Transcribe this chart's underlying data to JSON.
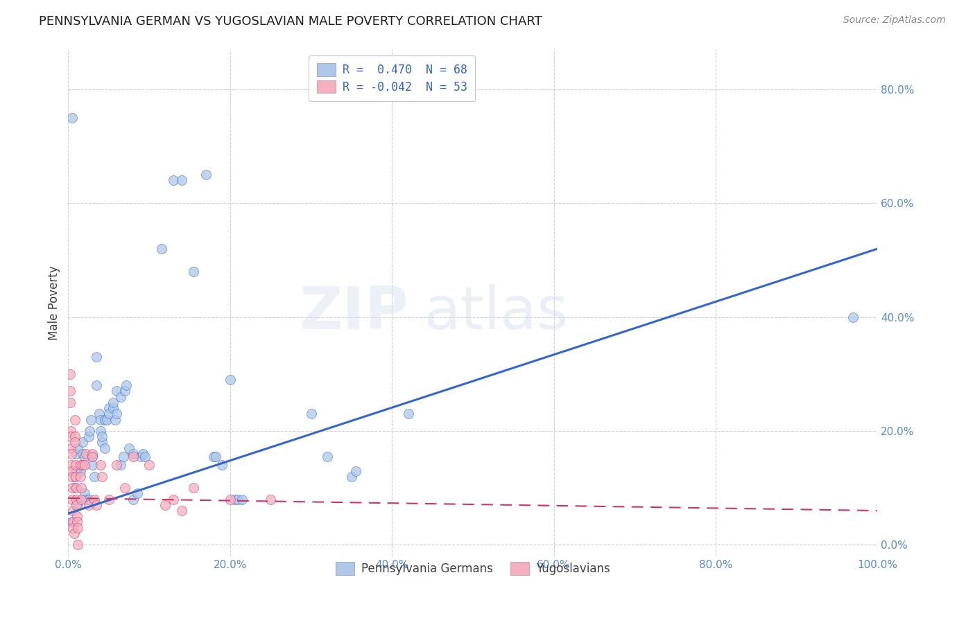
{
  "title": "PENNSYLVANIA GERMAN VS YUGOSLAVIAN MALE POVERTY CORRELATION CHART",
  "source": "Source: ZipAtlas.com",
  "ylabel": "Male Poverty",
  "r_blue": 0.47,
  "n_blue": 68,
  "r_pink": -0.042,
  "n_pink": 53,
  "watermark": "ZIPatlas",
  "legend_labels": [
    "Pennsylvania Germans",
    "Yugoslavians"
  ],
  "blue_color": "#adc8e8",
  "pink_color": "#f4afc0",
  "blue_line_color": "#3366cc",
  "pink_line_color": "#cc3366",
  "background_color": "#ffffff",
  "grid_color": "#ccccdd",
  "blue_scatter": [
    [
      0.005,
      0.75
    ],
    [
      0.005,
      0.04
    ],
    [
      0.008,
      0.1
    ],
    [
      0.008,
      0.12
    ],
    [
      0.01,
      0.13
    ],
    [
      0.01,
      0.16
    ],
    [
      0.012,
      0.17
    ],
    [
      0.012,
      0.07
    ],
    [
      0.015,
      0.13
    ],
    [
      0.018,
      0.16
    ],
    [
      0.018,
      0.18
    ],
    [
      0.02,
      0.155
    ],
    [
      0.02,
      0.09
    ],
    [
      0.022,
      0.08
    ],
    [
      0.025,
      0.08
    ],
    [
      0.025,
      0.19
    ],
    [
      0.026,
      0.2
    ],
    [
      0.028,
      0.22
    ],
    [
      0.03,
      0.155
    ],
    [
      0.03,
      0.14
    ],
    [
      0.032,
      0.12
    ],
    [
      0.035,
      0.33
    ],
    [
      0.035,
      0.28
    ],
    [
      0.038,
      0.23
    ],
    [
      0.04,
      0.22
    ],
    [
      0.04,
      0.2
    ],
    [
      0.042,
      0.18
    ],
    [
      0.042,
      0.19
    ],
    [
      0.045,
      0.17
    ],
    [
      0.045,
      0.22
    ],
    [
      0.048,
      0.22
    ],
    [
      0.05,
      0.24
    ],
    [
      0.05,
      0.23
    ],
    [
      0.055,
      0.24
    ],
    [
      0.055,
      0.25
    ],
    [
      0.058,
      0.22
    ],
    [
      0.06,
      0.23
    ],
    [
      0.06,
      0.27
    ],
    [
      0.065,
      0.26
    ],
    [
      0.065,
      0.14
    ],
    [
      0.068,
      0.155
    ],
    [
      0.07,
      0.27
    ],
    [
      0.072,
      0.28
    ],
    [
      0.075,
      0.17
    ],
    [
      0.08,
      0.16
    ],
    [
      0.08,
      0.08
    ],
    [
      0.085,
      0.09
    ],
    [
      0.09,
      0.155
    ],
    [
      0.092,
      0.16
    ],
    [
      0.095,
      0.155
    ],
    [
      0.115,
      0.52
    ],
    [
      0.13,
      0.64
    ],
    [
      0.14,
      0.64
    ],
    [
      0.155,
      0.48
    ],
    [
      0.17,
      0.65
    ],
    [
      0.18,
      0.155
    ],
    [
      0.182,
      0.155
    ],
    [
      0.19,
      0.14
    ],
    [
      0.2,
      0.29
    ],
    [
      0.205,
      0.08
    ],
    [
      0.21,
      0.08
    ],
    [
      0.215,
      0.08
    ],
    [
      0.3,
      0.23
    ],
    [
      0.32,
      0.155
    ],
    [
      0.35,
      0.12
    ],
    [
      0.355,
      0.13
    ],
    [
      0.42,
      0.23
    ],
    [
      0.97,
      0.4
    ]
  ],
  "pink_scatter": [
    [
      0.002,
      0.3
    ],
    [
      0.002,
      0.27
    ],
    [
      0.002,
      0.25
    ],
    [
      0.003,
      0.2
    ],
    [
      0.003,
      0.19
    ],
    [
      0.003,
      0.17
    ],
    [
      0.004,
      0.16
    ],
    [
      0.004,
      0.14
    ],
    [
      0.004,
      0.13
    ],
    [
      0.005,
      0.12
    ],
    [
      0.005,
      0.1
    ],
    [
      0.005,
      0.08
    ],
    [
      0.006,
      0.06
    ],
    [
      0.006,
      0.04
    ],
    [
      0.006,
      0.03
    ],
    [
      0.007,
      0.02
    ],
    [
      0.008,
      0.22
    ],
    [
      0.008,
      0.19
    ],
    [
      0.008,
      0.18
    ],
    [
      0.009,
      0.14
    ],
    [
      0.009,
      0.12
    ],
    [
      0.01,
      0.1
    ],
    [
      0.01,
      0.08
    ],
    [
      0.01,
      0.07
    ],
    [
      0.011,
      0.05
    ],
    [
      0.011,
      0.04
    ],
    [
      0.012,
      0.03
    ],
    [
      0.012,
      0.0
    ],
    [
      0.015,
      0.14
    ],
    [
      0.015,
      0.12
    ],
    [
      0.016,
      0.1
    ],
    [
      0.016,
      0.08
    ],
    [
      0.018,
      0.14
    ],
    [
      0.02,
      0.14
    ],
    [
      0.022,
      0.16
    ],
    [
      0.025,
      0.07
    ],
    [
      0.03,
      0.16
    ],
    [
      0.03,
      0.155
    ],
    [
      0.032,
      0.08
    ],
    [
      0.035,
      0.07
    ],
    [
      0.04,
      0.14
    ],
    [
      0.042,
      0.12
    ],
    [
      0.05,
      0.08
    ],
    [
      0.06,
      0.14
    ],
    [
      0.07,
      0.1
    ],
    [
      0.08,
      0.155
    ],
    [
      0.1,
      0.14
    ],
    [
      0.12,
      0.07
    ],
    [
      0.13,
      0.08
    ],
    [
      0.14,
      0.06
    ],
    [
      0.155,
      0.1
    ],
    [
      0.2,
      0.08
    ],
    [
      0.25,
      0.08
    ]
  ],
  "xlim": [
    0.0,
    1.0
  ],
  "ylim": [
    -0.02,
    0.87
  ],
  "xtick_vals": [
    0.0,
    0.2,
    0.4,
    0.6,
    0.8,
    1.0
  ],
  "ytick_vals": [
    0.0,
    0.2,
    0.4,
    0.6,
    0.8
  ],
  "xtick_labels": [
    "0.0%",
    "20.0%",
    "40.0%",
    "60.0%",
    "80.0%",
    "100.0%"
  ],
  "ytick_labels": [
    "0.0%",
    "20.0%",
    "40.0%",
    "60.0%",
    "80.0%"
  ],
  "blue_line_x": [
    0.0,
    1.0
  ],
  "blue_line_y": [
    0.055,
    0.52
  ],
  "pink_line_x": [
    0.0,
    1.0
  ],
  "pink_line_y": [
    0.082,
    0.06
  ]
}
